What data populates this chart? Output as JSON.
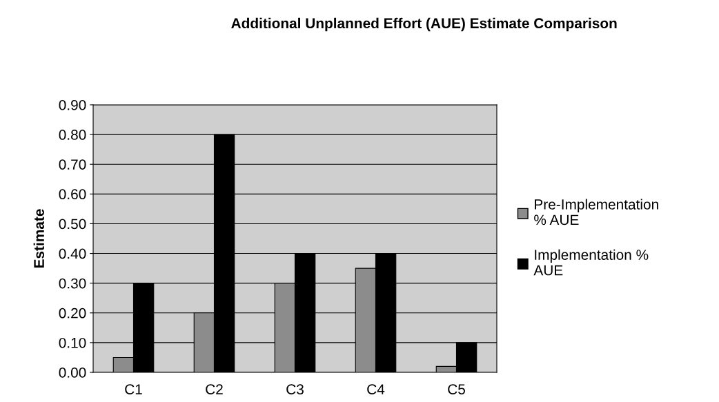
{
  "chart_data": {
    "type": "bar",
    "title": "Additional Unplanned Effort (AUE) Estimate Comparison",
    "ylabel": "Estimate",
    "categories": [
      "C1",
      "C2",
      "C3",
      "C4",
      "C5"
    ],
    "series": [
      {
        "name": "Pre-Implementation\n% AUE",
        "color": "#8c8c8c",
        "values": [
          0.05,
          0.2,
          0.3,
          0.35,
          0.02
        ]
      },
      {
        "name": "Implementation %\nAUE",
        "color": "#000000",
        "values": [
          0.3,
          0.8,
          0.4,
          0.4,
          0.1
        ]
      }
    ],
    "ylim": [
      0,
      0.9
    ],
    "yticks": [
      {
        "value": 0,
        "label": "0.00"
      },
      {
        "value": 0.1,
        "label": "0.10"
      },
      {
        "value": 0.2,
        "label": "0.20"
      },
      {
        "value": 0.3,
        "label": "0.30"
      },
      {
        "value": 0.4,
        "label": "0.40"
      },
      {
        "value": 0.5,
        "label": "0.50"
      },
      {
        "value": 0.6,
        "label": "0.60"
      },
      {
        "value": 0.7,
        "label": "0.70"
      },
      {
        "value": 0.8,
        "label": "0.80"
      },
      {
        "value": 0.9,
        "label": "0.90"
      }
    ],
    "grid": "y",
    "legend": "right"
  }
}
